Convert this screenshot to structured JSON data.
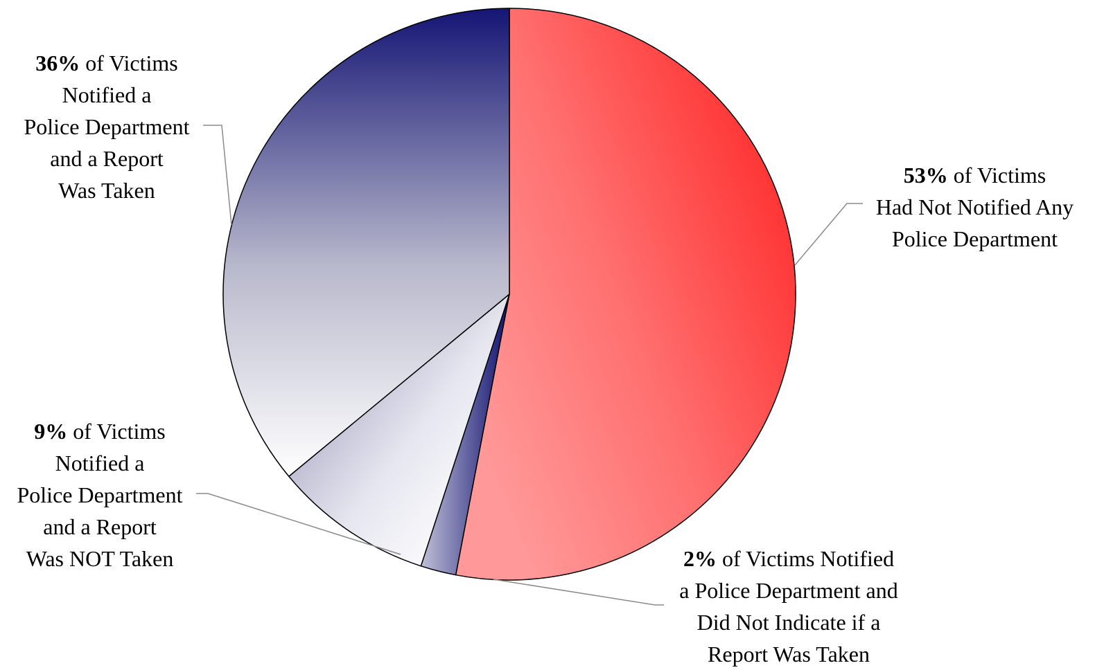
{
  "chart_data": {
    "type": "pie",
    "start_angle_deg": 0,
    "direction": "clockwise",
    "slices": [
      {
        "value": 53,
        "percent_label": "53%",
        "label_lines": [
          " of Victims",
          "Had Not Notified Any",
          "Police Department"
        ],
        "color": "#ff3333"
      },
      {
        "value": 2,
        "percent_label": "2%",
        "label_lines": [
          " of Victims Notified",
          "a Police Department and",
          "Did Not Indicate if a",
          "Report Was Taken"
        ],
        "color": "#1a1a7a"
      },
      {
        "value": 9,
        "percent_label": "9%",
        "label_lines": [
          " of Victims",
          "Notified a",
          "Police Department",
          "and a Report",
          "Was NOT Taken"
        ],
        "color": "#9999bb"
      },
      {
        "value": 36,
        "percent_label": "36%",
        "label_lines": [
          " of Victims",
          "Notified a",
          "Police Department",
          "and a Report",
          "Was Taken"
        ],
        "color": "#15157a"
      }
    ]
  }
}
